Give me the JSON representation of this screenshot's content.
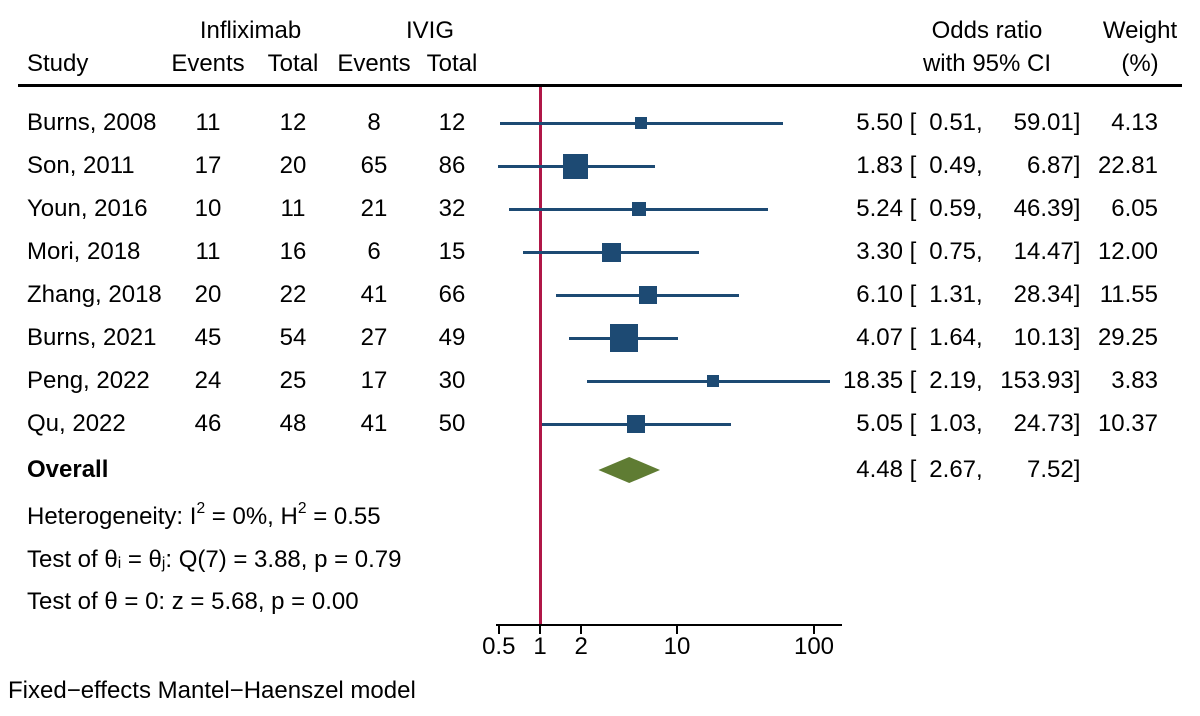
{
  "header": {
    "study": "Study",
    "group1": "Infliximab",
    "group2": "IVIG",
    "events1": "Events",
    "total1": "Total",
    "events2": "Events",
    "total2": "Total",
    "or_line1": "Odds ratio",
    "or_line2": "with 95% CI",
    "weight_line1": "Weight",
    "weight_line2": "(%)"
  },
  "footer_note": "Fixed−effects Mantel−Haenszel model",
  "colors": {
    "marker_blue": "#1D4A73",
    "reference_red": "#B01747",
    "diamond_green": "#5F7C33",
    "text_black": "#000000",
    "background": "#FFFFFF"
  },
  "chart_data": {
    "type": "forest",
    "effect_measure": "Odds ratio",
    "model_label": "Fixed−effects Mantel−Haenszel model",
    "x_axis": {
      "scale": "log10",
      "tick_values": [
        0.5,
        1,
        2,
        10,
        100
      ],
      "tick_labels": [
        "0.5",
        "1",
        "2",
        "10",
        "100"
      ],
      "reference_line_value": 1,
      "range": [
        0.48,
        160
      ]
    },
    "studies": [
      {
        "study": "Burns, 2008",
        "infliximab_events": "11",
        "infliximab_total": "12",
        "ivig_events": "8",
        "ivig_total": "12",
        "or": "5.50",
        "lcl": "0.51",
        "ucl": "59.01",
        "weight": "4.13"
      },
      {
        "study": "Son, 2011",
        "infliximab_events": "17",
        "infliximab_total": "20",
        "ivig_events": "65",
        "ivig_total": "86",
        "or": "1.83",
        "lcl": "0.49",
        "ucl": "6.87",
        "weight": "22.81"
      },
      {
        "study": "Youn, 2016",
        "infliximab_events": "10",
        "infliximab_total": "11",
        "ivig_events": "21",
        "ivig_total": "32",
        "or": "5.24",
        "lcl": "0.59",
        "ucl": "46.39",
        "weight": "6.05"
      },
      {
        "study": "Mori, 2018",
        "infliximab_events": "11",
        "infliximab_total": "16",
        "ivig_events": "6",
        "ivig_total": "15",
        "or": "3.30",
        "lcl": "0.75",
        "ucl": "14.47",
        "weight": "12.00"
      },
      {
        "study": "Zhang, 2018",
        "infliximab_events": "20",
        "infliximab_total": "22",
        "ivig_events": "41",
        "ivig_total": "66",
        "or": "6.10",
        "lcl": "1.31",
        "ucl": "28.34",
        "weight": "11.55"
      },
      {
        "study": "Burns, 2021",
        "infliximab_events": "45",
        "infliximab_total": "54",
        "ivig_events": "27",
        "ivig_total": "49",
        "or": "4.07",
        "lcl": "1.64",
        "ucl": "10.13",
        "weight": "29.25"
      },
      {
        "study": "Peng, 2022",
        "infliximab_events": "24",
        "infliximab_total": "25",
        "ivig_events": "17",
        "ivig_total": "30",
        "or": "18.35",
        "lcl": "2.19",
        "ucl": "153.93",
        "weight": "3.83"
      },
      {
        "study": "Qu, 2022",
        "infliximab_events": "46",
        "infliximab_total": "48",
        "ivig_events": "41",
        "ivig_total": "50",
        "or": "5.05",
        "lcl": "1.03",
        "ucl": "24.73",
        "weight": "10.37"
      }
    ],
    "overall": {
      "label": "Overall",
      "or": "4.48",
      "lcl": "2.67",
      "ucl": "7.52"
    },
    "stats": [
      {
        "segments": [
          {
            "t": "Heterogeneity: I"
          },
          {
            "sup": "2"
          },
          {
            "t": " = 0%, H"
          },
          {
            "sup": "2"
          },
          {
            "t": " = 0.55"
          }
        ]
      },
      {
        "segments": [
          {
            "t": "Test of θ"
          },
          {
            "sub": "i"
          },
          {
            "t": " = θ"
          },
          {
            "sub": "j"
          },
          {
            "t": ": Q(7) = 3.88, p = 0.79"
          }
        ]
      },
      {
        "segments": [
          {
            "t": "Test of θ = 0: z = 5.68, p = 0.00"
          }
        ]
      }
    ]
  }
}
